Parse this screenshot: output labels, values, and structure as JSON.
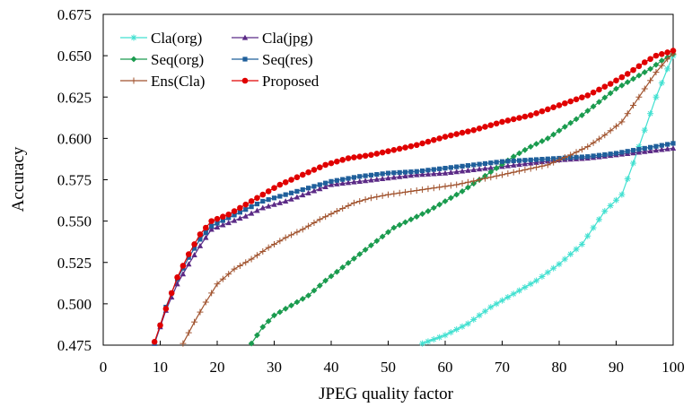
{
  "chart_data": {
    "type": "line",
    "title": "",
    "xlabel": "JPEG quality factor",
    "ylabel": "Accuracy",
    "xlim": [
      0,
      100
    ],
    "ylim": [
      0.475,
      0.675
    ],
    "xticks": [
      "0",
      "10",
      "20",
      "30",
      "40",
      "50",
      "60",
      "70",
      "80",
      "90",
      "100"
    ],
    "yticks": [
      "0.475",
      "0.500",
      "0.525",
      "0.550",
      "0.575",
      "0.600",
      "0.625",
      "0.650",
      "0.675"
    ],
    "grid": false,
    "legend_position": "top-left",
    "series": [
      {
        "name": "Cla(org)",
        "color": "#40e0d0",
        "marker": "asterisk",
        "points": [
          [
            56,
            0.476
          ],
          [
            60,
            0.481
          ],
          [
            64,
            0.488
          ],
          [
            68,
            0.498
          ],
          [
            72,
            0.506
          ],
          [
            76,
            0.514
          ],
          [
            80,
            0.524
          ],
          [
            84,
            0.536
          ],
          [
            88,
            0.556
          ],
          [
            91,
            0.566
          ],
          [
            93,
            0.585
          ],
          [
            95,
            0.605
          ],
          [
            97,
            0.625
          ],
          [
            99,
            0.642
          ],
          [
            100,
            0.65
          ]
        ]
      },
      {
        "name": "Cla(jpg)",
        "color": "#5b2a86",
        "marker": "triangle",
        "points": [
          [
            9,
            0.476
          ],
          [
            11,
            0.496
          ],
          [
            13,
            0.512
          ],
          [
            15,
            0.524
          ],
          [
            17,
            0.535
          ],
          [
            19,
            0.545
          ],
          [
            22,
            0.549
          ],
          [
            25,
            0.553
          ],
          [
            28,
            0.558
          ],
          [
            32,
            0.562
          ],
          [
            36,
            0.567
          ],
          [
            40,
            0.572
          ],
          [
            45,
            0.574
          ],
          [
            50,
            0.576
          ],
          [
            55,
            0.578
          ],
          [
            60,
            0.579
          ],
          [
            65,
            0.581
          ],
          [
            70,
            0.583
          ],
          [
            75,
            0.585
          ],
          [
            80,
            0.587
          ],
          [
            85,
            0.588
          ],
          [
            90,
            0.59
          ],
          [
            95,
            0.592
          ],
          [
            100,
            0.594
          ]
        ]
      },
      {
        "name": "Seq(org)",
        "color": "#1a9b4e",
        "marker": "diamond",
        "points": [
          [
            26,
            0.476
          ],
          [
            28,
            0.486
          ],
          [
            30,
            0.493
          ],
          [
            33,
            0.499
          ],
          [
            36,
            0.505
          ],
          [
            39,
            0.514
          ],
          [
            42,
            0.522
          ],
          [
            45,
            0.53
          ],
          [
            48,
            0.538
          ],
          [
            51,
            0.546
          ],
          [
            54,
            0.551
          ],
          [
            57,
            0.556
          ],
          [
            60,
            0.562
          ],
          [
            63,
            0.568
          ],
          [
            66,
            0.575
          ],
          [
            69,
            0.582
          ],
          [
            72,
            0.589
          ],
          [
            75,
            0.595
          ],
          [
            78,
            0.6
          ],
          [
            81,
            0.607
          ],
          [
            84,
            0.614
          ],
          [
            87,
            0.622
          ],
          [
            90,
            0.63
          ],
          [
            93,
            0.636
          ],
          [
            96,
            0.642
          ],
          [
            98,
            0.647
          ],
          [
            100,
            0.651
          ]
        ]
      },
      {
        "name": "Seq(res)",
        "color": "#1f5f9b",
        "marker": "square",
        "points": [
          [
            9,
            0.476
          ],
          [
            11,
            0.498
          ],
          [
            13,
            0.515
          ],
          [
            15,
            0.528
          ],
          [
            17,
            0.539
          ],
          [
            19,
            0.547
          ],
          [
            22,
            0.552
          ],
          [
            25,
            0.557
          ],
          [
            28,
            0.562
          ],
          [
            32,
            0.566
          ],
          [
            36,
            0.57
          ],
          [
            40,
            0.574
          ],
          [
            45,
            0.577
          ],
          [
            50,
            0.579
          ],
          [
            55,
            0.58
          ],
          [
            60,
            0.582
          ],
          [
            65,
            0.584
          ],
          [
            70,
            0.586
          ],
          [
            75,
            0.587
          ],
          [
            80,
            0.588
          ],
          [
            85,
            0.589
          ],
          [
            90,
            0.591
          ],
          [
            95,
            0.594
          ],
          [
            100,
            0.597
          ]
        ]
      },
      {
        "name": "Ens(Cla)",
        "color": "#a0522d",
        "marker": "plus",
        "points": [
          [
            14,
            0.476
          ],
          [
            16,
            0.489
          ],
          [
            18,
            0.501
          ],
          [
            20,
            0.512
          ],
          [
            23,
            0.521
          ],
          [
            26,
            0.527
          ],
          [
            29,
            0.534
          ],
          [
            32,
            0.54
          ],
          [
            35,
            0.545
          ],
          [
            38,
            0.551
          ],
          [
            41,
            0.556
          ],
          [
            44,
            0.561
          ],
          [
            47,
            0.564
          ],
          [
            50,
            0.566
          ],
          [
            54,
            0.568
          ],
          [
            58,
            0.57
          ],
          [
            62,
            0.572
          ],
          [
            66,
            0.575
          ],
          [
            70,
            0.578
          ],
          [
            74,
            0.581
          ],
          [
            78,
            0.584
          ],
          [
            82,
            0.59
          ],
          [
            85,
            0.595
          ],
          [
            88,
            0.602
          ],
          [
            91,
            0.61
          ],
          [
            93,
            0.62
          ],
          [
            95,
            0.63
          ],
          [
            97,
            0.64
          ],
          [
            99,
            0.648
          ],
          [
            100,
            0.651
          ]
        ]
      },
      {
        "name": "Proposed",
        "color": "#e00000",
        "marker": "circle",
        "points": [
          [
            9,
            0.477
          ],
          [
            11,
            0.497
          ],
          [
            13,
            0.516
          ],
          [
            15,
            0.53
          ],
          [
            17,
            0.542
          ],
          [
            19,
            0.55
          ],
          [
            22,
            0.554
          ],
          [
            25,
            0.56
          ],
          [
            28,
            0.566
          ],
          [
            31,
            0.572
          ],
          [
            35,
            0.578
          ],
          [
            39,
            0.584
          ],
          [
            43,
            0.588
          ],
          [
            47,
            0.59
          ],
          [
            51,
            0.593
          ],
          [
            55,
            0.596
          ],
          [
            60,
            0.601
          ],
          [
            65,
            0.605
          ],
          [
            70,
            0.61
          ],
          [
            75,
            0.614
          ],
          [
            80,
            0.62
          ],
          [
            85,
            0.626
          ],
          [
            89,
            0.633
          ],
          [
            92,
            0.639
          ],
          [
            95,
            0.646
          ],
          [
            97,
            0.65
          ],
          [
            99,
            0.652
          ],
          [
            100,
            0.653
          ]
        ]
      }
    ]
  }
}
